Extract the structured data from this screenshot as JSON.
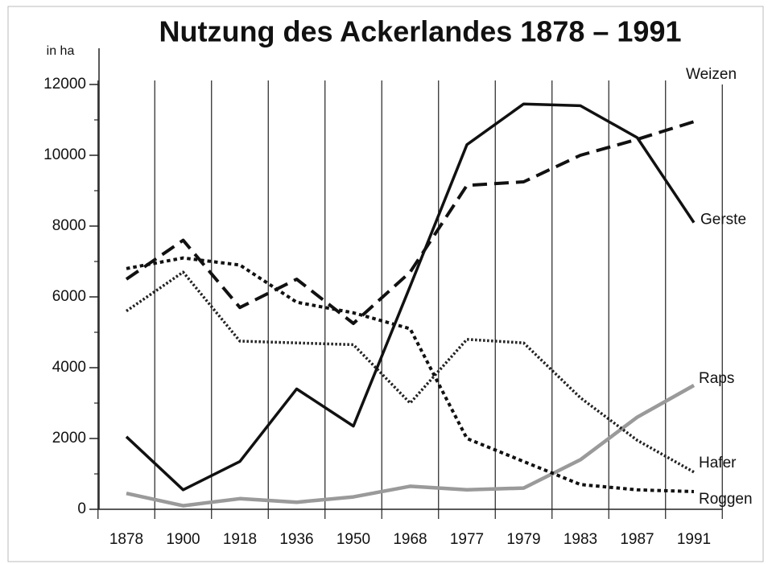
{
  "chart_data": {
    "type": "line",
    "title": "Nutzung des Ackerlandes 1878 – 1991",
    "y_label": "in ha",
    "categories": [
      "1878",
      "1900",
      "1918",
      "1936",
      "1950",
      "1968",
      "1977",
      "1979",
      "1983",
      "1987",
      "1991"
    ],
    "series": [
      {
        "name": "Weizen",
        "color": "#111111",
        "values": [
          6500,
          7600,
          5700,
          6500,
          5250,
          6700,
          9150,
          9250,
          10000,
          10450,
          10950
        ]
      },
      {
        "name": "Gerste",
        "color": "#111111",
        "values": [
          2050,
          550,
          1350,
          3400,
          2350,
          6300,
          10300,
          11450,
          11400,
          10500,
          8100
        ]
      },
      {
        "name": "Raps",
        "color": "#9a9a9a",
        "values": [
          450,
          100,
          300,
          200,
          350,
          650,
          550,
          600,
          1400,
          2600,
          3500
        ]
      },
      {
        "name": "Hafer",
        "color": "#222222",
        "values": [
          5600,
          6700,
          4750,
          4700,
          4650,
          3000,
          4800,
          4700,
          3150,
          1950,
          1050
        ]
      },
      {
        "name": "Roggen",
        "color": "#111111",
        "values": [
          6800,
          7100,
          6900,
          5850,
          5550,
          5100,
          2000,
          1350,
          700,
          550,
          500
        ]
      }
    ],
    "ylim": [
      0,
      12000
    ],
    "yticks": [
      0,
      2000,
      4000,
      6000,
      8000,
      10000,
      12000
    ],
    "grid": true
  }
}
